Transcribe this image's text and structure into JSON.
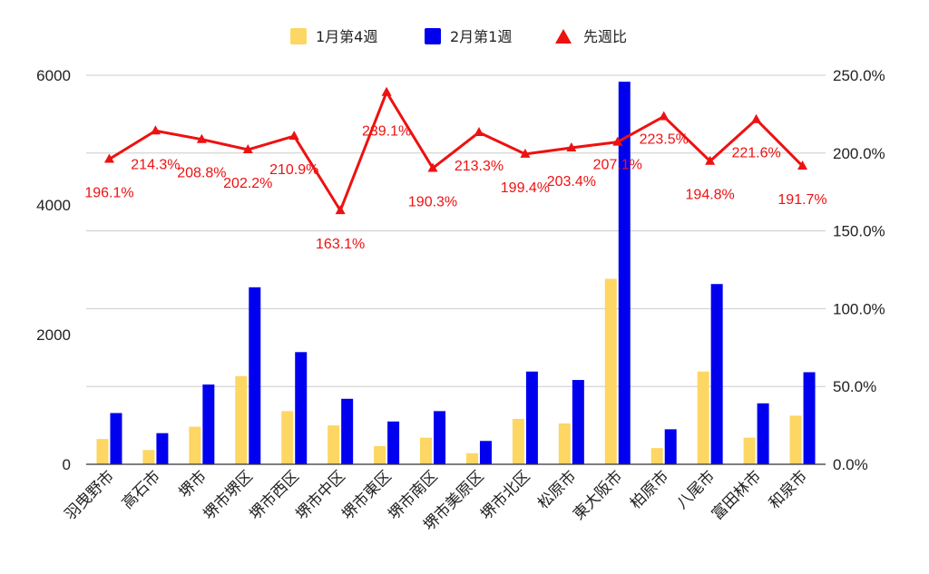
{
  "chart_data": {
    "type": "bar",
    "categories": [
      "羽曳野市",
      "高石市",
      "堺市",
      "堺市堺区",
      "堺市西区",
      "堺市中区",
      "堺市東区",
      "堺市南区",
      "堺市美原区",
      "堺市北区",
      "松原市",
      "東大阪市",
      "柏原市",
      "八尾市",
      "富田林市",
      "和泉市"
    ],
    "series": [
      {
        "name": "1月第4週",
        "type": "bar",
        "axis": "left",
        "color": "#fdd663",
        "values": [
          390,
          220,
          580,
          1360,
          820,
          600,
          280,
          410,
          170,
          700,
          630,
          2860,
          250,
          1430,
          410,
          750
        ]
      },
      {
        "name": "2月第1週",
        "type": "bar",
        "axis": "left",
        "color": "#0000ee",
        "values": [
          790,
          480,
          1230,
          2730,
          1730,
          1010,
          660,
          820,
          360,
          1430,
          1300,
          5900,
          540,
          2780,
          940,
          1420
        ]
      },
      {
        "name": "先週比",
        "type": "line",
        "axis": "right",
        "color": "#ee1111",
        "values": [
          196.1,
          214.3,
          208.8,
          202.2,
          210.9,
          163.1,
          239.1,
          190.3,
          213.3,
          199.4,
          203.4,
          207.1,
          223.5,
          194.8,
          221.6,
          191.7
        ],
        "labels": [
          "196.1%",
          "214.3%",
          "208.8%",
          "202.2%",
          "210.9%",
          "163.1%",
          "239.1%",
          "190.3%",
          "213.3%",
          "199.4%",
          "203.4%",
          "207.1%",
          "223.5%",
          "194.8%",
          "221.6%",
          "191.7%"
        ]
      }
    ],
    "left_axis": {
      "ticks": [
        "0",
        "2000",
        "4000",
        "6000"
      ],
      "min": 0,
      "max": 6000
    },
    "right_axis": {
      "ticks": [
        "0.0%",
        "50.0%",
        "100.0%",
        "150.0%",
        "200.0%",
        "250.0%"
      ],
      "min": 0,
      "max": 250
    },
    "grid": true,
    "legend": "top-center"
  }
}
